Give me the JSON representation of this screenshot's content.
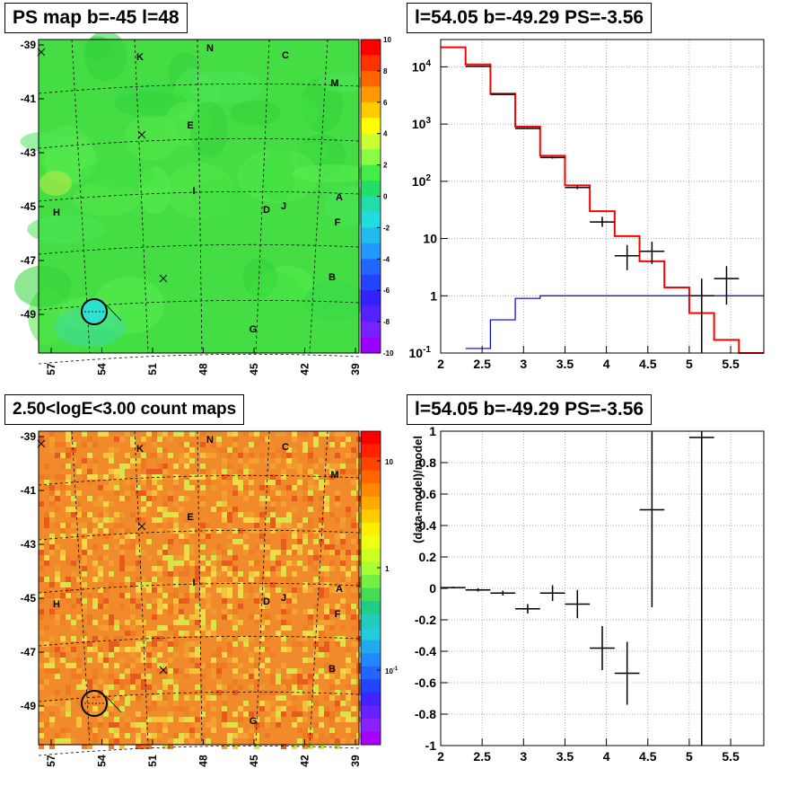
{
  "panels": {
    "top_left": {
      "title": "PS map b=-45 l=48",
      "y_ticks": [
        "-39",
        "-41",
        "-43",
        "-45",
        "-47",
        "-49"
      ],
      "x_ticks": [
        "57",
        "54",
        "51",
        "48",
        "45",
        "42",
        "39"
      ],
      "colorbar": {
        "ticks": [
          "10",
          "8",
          "6",
          "4",
          "2",
          "0",
          "-2",
          "-4",
          "-6",
          "-8",
          "-10"
        ]
      },
      "map_labels": [
        {
          "text": "N"
        },
        {
          "text": "K"
        },
        {
          "text": "C"
        },
        {
          "text": "M"
        },
        {
          "text": "E"
        },
        {
          "text": "I"
        },
        {
          "text": "A"
        },
        {
          "text": "D"
        },
        {
          "text": "J"
        },
        {
          "text": "F"
        },
        {
          "text": "H"
        },
        {
          "text": "B"
        },
        {
          "text": "G"
        }
      ]
    },
    "bottom_left": {
      "title": "2.50<logE<3.00 count maps",
      "y_ticks": [
        "-39",
        "-41",
        "-43",
        "-45",
        "-47",
        "-49"
      ],
      "x_ticks": [
        "57",
        "54",
        "51",
        "48",
        "45",
        "42",
        "39"
      ],
      "colorbar": {
        "ticks": [
          "10",
          "1",
          "10-1"
        ]
      },
      "map_labels": [
        {
          "text": "N"
        },
        {
          "text": "K"
        },
        {
          "text": "C"
        },
        {
          "text": "M"
        },
        {
          "text": "E"
        },
        {
          "text": "I"
        },
        {
          "text": "A"
        },
        {
          "text": "D"
        },
        {
          "text": "J"
        },
        {
          "text": "F"
        },
        {
          "text": "H"
        },
        {
          "text": "B"
        },
        {
          "text": "G"
        }
      ]
    },
    "top_right": {
      "title": "l=54.05 b=-49.29 PS=-3.56"
    },
    "bottom_right": {
      "title": "l=54.05 b=-49.29 PS=-3.56"
    }
  },
  "colors": {
    "model_red": "#ff0000",
    "background_blue": "#0000cc",
    "data_black": "#000000",
    "map_green": "#44dd44",
    "map_orange": "#f08a2a"
  },
  "chart_data": [
    {
      "type": "heatmap",
      "title": "PS map b=-45 l=48",
      "x_ticks": [
        57,
        54,
        51,
        48,
        45,
        42,
        39
      ],
      "y_ticks": [
        -39,
        -41,
        -43,
        -45,
        -47,
        -49
      ],
      "colorbar_range": [
        -10,
        10
      ]
    },
    {
      "type": "line",
      "title": "l=54.05 b=-49.29 PS=-3.56",
      "xlim": [
        2,
        5.9
      ],
      "ylim": [
        0.1,
        30000
      ],
      "log_y": true,
      "grid": true,
      "x_ticks": [
        2,
        2.5,
        3,
        3.5,
        4,
        4.5,
        5,
        5.5
      ],
      "y_ticks": [
        "10-1",
        "1",
        "10",
        "102",
        "103",
        "104"
      ],
      "series": [
        {
          "kind": "step",
          "color": "#ff0000",
          "edges": [
            2,
            2.3,
            2.6,
            2.9,
            3.2,
            3.5,
            3.8,
            4.1,
            4.4,
            4.7,
            5.0,
            5.3,
            5.6,
            5.9
          ],
          "values": [
            22000,
            11000,
            3400,
            900,
            280,
            85,
            30,
            11,
            4.0,
            1.4,
            0.5,
            0.17,
            0.08
          ]
        },
        {
          "kind": "step",
          "color": "#0000cc",
          "edges": [
            2.3,
            2.6,
            2.9,
            3.2,
            3.5,
            5.9
          ],
          "values": [
            0.12,
            0.38,
            0.9,
            1.0,
            1.0
          ]
        },
        {
          "kind": "errorbar",
          "color": "#000000",
          "x": [
            2.45,
            2.75,
            3.05,
            3.35,
            3.65,
            3.95,
            4.25,
            4.55,
            5.15,
            5.45
          ],
          "y": [
            10200,
            3300,
            840,
            260,
            78,
            19.5,
            5.0,
            6.0,
            1.0,
            2.0
          ],
          "xerr": [
            0.15,
            0.15,
            0.15,
            0.15,
            0.15,
            0.15,
            0.15,
            0.15,
            0.15,
            0.15
          ],
          "ylo": [
            10100,
            3250,
            820,
            250,
            73,
            16,
            2.8,
            3.6,
            0.1,
            0.7
          ],
          "yhi": [
            10300,
            3350,
            860,
            270,
            83,
            24,
            7.7,
            8.8,
            2.0,
            3.3
          ]
        }
      ]
    },
    {
      "type": "heatmap",
      "title": "2.50<logE<3.00 count maps",
      "x_ticks": [
        57,
        54,
        51,
        48,
        45,
        42,
        39
      ],
      "y_ticks": [
        -39,
        -41,
        -43,
        -45,
        -47,
        -49
      ],
      "colorbar_log": true
    },
    {
      "type": "scatter",
      "title": "l=54.05 b=-49.29 PS=-3.56",
      "ylabel": "(data-model)/model",
      "xlim": [
        2,
        5.9
      ],
      "ylim": [
        -1,
        1
      ],
      "grid": true,
      "x_ticks": [
        2,
        2.5,
        3,
        3.5,
        4,
        4.5,
        5,
        5.5
      ],
      "y_ticks": [
        -1,
        -0.8,
        -0.6,
        -0.4,
        -0.2,
        0,
        0.2,
        0.4,
        0.6,
        0.8,
        1
      ],
      "series": [
        {
          "kind": "errorbar",
          "color": "#000000",
          "x": [
            2.15,
            2.45,
            2.75,
            3.05,
            3.35,
            3.65,
            3.95,
            4.25,
            4.55,
            5.15
          ],
          "y": [
            0.005,
            -0.01,
            -0.03,
            -0.13,
            -0.03,
            -0.1,
            -0.38,
            -0.54,
            0.5,
            0.96
          ],
          "xerr": [
            0.15,
            0.15,
            0.15,
            0.15,
            0.15,
            0.15,
            0.15,
            0.15,
            0.15,
            0.15
          ],
          "ylo": [
            0.0,
            -0.02,
            -0.045,
            -0.16,
            -0.08,
            -0.19,
            -0.52,
            -0.74,
            -0.12,
            -1.0
          ],
          "yhi": [
            0.01,
            0.0,
            -0.015,
            -0.1,
            0.02,
            -0.01,
            -0.24,
            -0.34,
            1.0,
            1.0
          ]
        }
      ]
    }
  ]
}
